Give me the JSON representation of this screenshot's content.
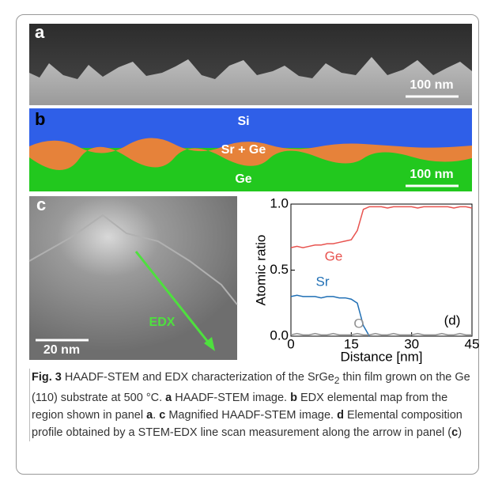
{
  "panels": {
    "a": {
      "label": "a",
      "scale_bar": "100 nm"
    },
    "b": {
      "label": "b",
      "scale_bar": "100 nm",
      "regions": [
        "Si",
        "Sr + Ge",
        "Ge"
      ]
    },
    "c": {
      "label": "c",
      "scale_bar": "20 nm",
      "arrow": "EDX"
    }
  },
  "chart_data": {
    "type": "line",
    "xlabel": "Distance [nm]",
    "ylabel": "Atomic ratio",
    "annotation": "(d)",
    "x": [
      0,
      1.5,
      3,
      4.5,
      6,
      7.5,
      9,
      10.5,
      12,
      13.5,
      15,
      16.5,
      18,
      19.5,
      21,
      22.5,
      24,
      25.5,
      27,
      28.5,
      30,
      31.5,
      33,
      34.5,
      36,
      37.5,
      39,
      40.5,
      42,
      43.5,
      45
    ],
    "series": [
      {
        "name": "Ge",
        "color": "#e8534f",
        "values": [
          0.67,
          0.68,
          0.67,
          0.68,
          0.69,
          0.69,
          0.7,
          0.7,
          0.71,
          0.72,
          0.73,
          0.8,
          0.96,
          0.98,
          0.98,
          0.98,
          0.97,
          0.98,
          0.98,
          0.98,
          0.98,
          0.97,
          0.98,
          0.98,
          0.98,
          0.98,
          0.98,
          0.97,
          0.98,
          0.98,
          0.97
        ]
      },
      {
        "name": "Sr",
        "color": "#1f6fb5",
        "values": [
          0.3,
          0.31,
          0.3,
          0.3,
          0.3,
          0.29,
          0.3,
          0.3,
          0.29,
          0.29,
          0.28,
          0.25,
          0.08,
          0,
          null,
          null,
          null,
          null,
          null,
          null,
          null,
          null,
          null,
          null,
          null,
          null,
          null,
          null,
          null,
          null,
          null
        ]
      },
      {
        "name": "O",
        "color": "#909090",
        "values": [
          0.01,
          0.02,
          0.01,
          0.01,
          0.02,
          0.01,
          0.01,
          0.02,
          0.01,
          0.01,
          0.01,
          0.02,
          0.01,
          0.01,
          0.02,
          0.01,
          0.01,
          0.02,
          0.01,
          0.01,
          0.01,
          0.02,
          0.01,
          0.01,
          0.01,
          0.02,
          0.01,
          0.01,
          0.02,
          0.01,
          0.01
        ]
      }
    ],
    "xlim": [
      0,
      45
    ],
    "xticks": [
      0,
      15,
      30,
      45
    ],
    "ylim": [
      0,
      1
    ],
    "yticks": [
      {
        "value": 0,
        "label": "0.0"
      },
      {
        "value": 0.5,
        "label": "0.5"
      },
      {
        "value": 1,
        "label": "1.0"
      }
    ]
  },
  "caption": [
    "Fig. 3",
    " HAADF-STEM and EDX characterization of the SrGe",
    "2",
    " thin film grown on the Ge (110) substrate at 500 °C. ",
    "a",
    " HAADF-STEM image. ",
    "b",
    " EDX elemental map from the region shown in panel ",
    "a",
    ". ",
    "c",
    " Magnified HAADF-STEM image. ",
    "d",
    " Elemental composition profile obtained by a STEM-EDX line scan measurement along the arrow in panel (",
    "c",
    ")"
  ]
}
